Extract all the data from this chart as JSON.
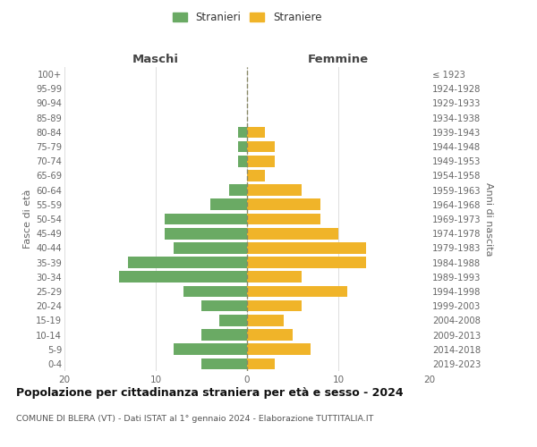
{
  "age_groups": [
    "0-4",
    "5-9",
    "10-14",
    "15-19",
    "20-24",
    "25-29",
    "30-34",
    "35-39",
    "40-44",
    "45-49",
    "50-54",
    "55-59",
    "60-64",
    "65-69",
    "70-74",
    "75-79",
    "80-84",
    "85-89",
    "90-94",
    "95-99",
    "100+"
  ],
  "birth_years": [
    "2019-2023",
    "2014-2018",
    "2009-2013",
    "2004-2008",
    "1999-2003",
    "1994-1998",
    "1989-1993",
    "1984-1988",
    "1979-1983",
    "1974-1978",
    "1969-1973",
    "1964-1968",
    "1959-1963",
    "1954-1958",
    "1949-1953",
    "1944-1948",
    "1939-1943",
    "1934-1938",
    "1929-1933",
    "1924-1928",
    "≤ 1923"
  ],
  "maschi": [
    5,
    8,
    5,
    3,
    5,
    7,
    14,
    13,
    8,
    9,
    9,
    4,
    2,
    0,
    1,
    1,
    1,
    0,
    0,
    0,
    0
  ],
  "femmine": [
    3,
    7,
    5,
    4,
    6,
    11,
    6,
    13,
    13,
    10,
    8,
    8,
    6,
    2,
    3,
    3,
    2,
    0,
    0,
    0,
    0
  ],
  "maschi_color": "#6aaa64",
  "femmine_color": "#f0b429",
  "title": "Popolazione per cittadinanza straniera per età e sesso - 2024",
  "subtitle": "COMUNE DI BLERA (VT) - Dati ISTAT al 1° gennaio 2024 - Elaborazione TUTTITALIA.IT",
  "legend_maschi": "Stranieri",
  "legend_femmine": "Straniere",
  "header_left": "Maschi",
  "header_right": "Femmine",
  "ylabel_left": "Fasce di età",
  "ylabel_right": "Anni di nascita",
  "xlim": 20,
  "background_color": "#ffffff",
  "grid_color": "#dddddd",
  "axis_label_color": "#666666",
  "center_line_color": "#888866"
}
